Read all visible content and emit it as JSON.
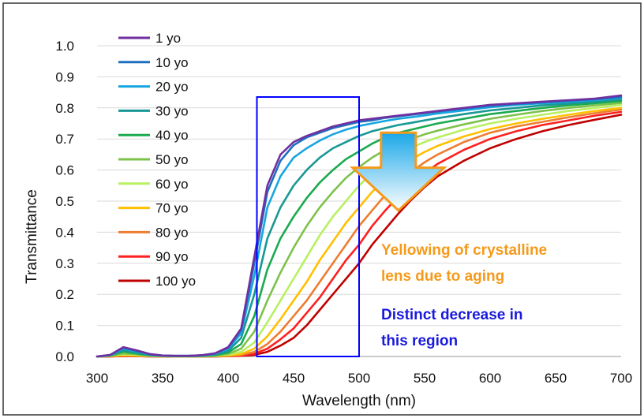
{
  "chart_data": {
    "type": "line",
    "title": "",
    "xlabel": "Wavelength (nm)",
    "ylabel": "Transmittance",
    "xlim": [
      300,
      700
    ],
    "ylim": [
      0,
      1.0
    ],
    "x_ticks": [
      "300",
      "350",
      "400",
      "450",
      "500",
      "550",
      "600",
      "650",
      "700"
    ],
    "y_ticks": [
      "0.0",
      "0.1",
      "0.2",
      "0.3",
      "0.4",
      "0.5",
      "0.6",
      "0.7",
      "0.8",
      "0.9",
      "1.0"
    ],
    "grid": "horizontal",
    "legend_position": "top-left",
    "x": [
      300,
      310,
      320,
      330,
      340,
      350,
      360,
      370,
      380,
      390,
      400,
      410,
      420,
      430,
      440,
      450,
      460,
      470,
      480,
      490,
      500,
      510,
      520,
      530,
      540,
      550,
      560,
      580,
      600,
      620,
      640,
      660,
      680,
      700
    ],
    "series": [
      {
        "name": "1 yo",
        "color": "#7030a0",
        "values": [
          0.0,
          0.005,
          0.03,
          0.02,
          0.008,
          0.003,
          0.002,
          0.002,
          0.004,
          0.01,
          0.03,
          0.09,
          0.32,
          0.55,
          0.65,
          0.69,
          0.71,
          0.725,
          0.74,
          0.75,
          0.76,
          0.765,
          0.77,
          0.775,
          0.78,
          0.785,
          0.79,
          0.8,
          0.81,
          0.815,
          0.82,
          0.825,
          0.83,
          0.84
        ]
      },
      {
        "name": "10 yo",
        "color": "#1f6fbf",
        "values": [
          0.0,
          0.005,
          0.028,
          0.018,
          0.007,
          0.003,
          0.002,
          0.002,
          0.004,
          0.01,
          0.028,
          0.085,
          0.3,
          0.53,
          0.63,
          0.68,
          0.705,
          0.72,
          0.735,
          0.745,
          0.755,
          0.76,
          0.768,
          0.773,
          0.778,
          0.783,
          0.788,
          0.798,
          0.807,
          0.813,
          0.818,
          0.823,
          0.828,
          0.835
        ]
      },
      {
        "name": "20 yo",
        "color": "#17a6e0",
        "values": [
          0.0,
          0.004,
          0.025,
          0.016,
          0.006,
          0.002,
          0.002,
          0.002,
          0.003,
          0.008,
          0.024,
          0.075,
          0.26,
          0.48,
          0.58,
          0.64,
          0.67,
          0.695,
          0.715,
          0.73,
          0.742,
          0.75,
          0.758,
          0.765,
          0.77,
          0.776,
          0.782,
          0.792,
          0.802,
          0.81,
          0.815,
          0.82,
          0.825,
          0.832
        ]
      },
      {
        "name": "30 yo",
        "color": "#189895",
        "values": [
          0.0,
          0.004,
          0.02,
          0.013,
          0.005,
          0.002,
          0.001,
          0.001,
          0.002,
          0.006,
          0.018,
          0.06,
          0.2,
          0.38,
          0.48,
          0.55,
          0.6,
          0.64,
          0.67,
          0.69,
          0.71,
          0.725,
          0.735,
          0.745,
          0.752,
          0.76,
          0.767,
          0.78,
          0.792,
          0.8,
          0.808,
          0.814,
          0.82,
          0.828
        ]
      },
      {
        "name": "40 yo",
        "color": "#1aaa4e",
        "values": [
          0.0,
          0.003,
          0.016,
          0.01,
          0.004,
          0.002,
          0.001,
          0.001,
          0.002,
          0.004,
          0.013,
          0.04,
          0.13,
          0.28,
          0.38,
          0.45,
          0.51,
          0.56,
          0.6,
          0.635,
          0.66,
          0.685,
          0.705,
          0.72,
          0.73,
          0.74,
          0.75,
          0.765,
          0.78,
          0.79,
          0.8,
          0.808,
          0.815,
          0.822
        ]
      },
      {
        "name": "50 yo",
        "color": "#7dc24b",
        "values": [
          0.0,
          0.002,
          0.01,
          0.007,
          0.003,
          0.001,
          0.001,
          0.001,
          0.001,
          0.003,
          0.008,
          0.025,
          0.08,
          0.18,
          0.27,
          0.35,
          0.42,
          0.48,
          0.53,
          0.575,
          0.61,
          0.64,
          0.665,
          0.685,
          0.7,
          0.715,
          0.727,
          0.747,
          0.765,
          0.778,
          0.79,
          0.8,
          0.808,
          0.816
        ]
      },
      {
        "name": "60 yo",
        "color": "#b8f060",
        "values": [
          0.0,
          0.002,
          0.007,
          0.005,
          0.002,
          0.001,
          0.0,
          0.0,
          0.001,
          0.002,
          0.005,
          0.015,
          0.045,
          0.11,
          0.18,
          0.25,
          0.32,
          0.39,
          0.45,
          0.5,
          0.55,
          0.59,
          0.625,
          0.65,
          0.672,
          0.69,
          0.705,
          0.73,
          0.75,
          0.765,
          0.778,
          0.79,
          0.8,
          0.81
        ]
      },
      {
        "name": "70 yo",
        "color": "#ffc000",
        "values": [
          0.0,
          0.001,
          0.004,
          0.003,
          0.001,
          0.0,
          0.0,
          0.0,
          0.0,
          0.001,
          0.003,
          0.008,
          0.025,
          0.065,
          0.12,
          0.18,
          0.24,
          0.31,
          0.37,
          0.43,
          0.48,
          0.53,
          0.57,
          0.605,
          0.635,
          0.658,
          0.678,
          0.708,
          0.732,
          0.75,
          0.765,
          0.778,
          0.79,
          0.8
        ]
      },
      {
        "name": "80 yo",
        "color": "#ed7d31",
        "values": [
          0.0,
          0.001,
          0.003,
          0.002,
          0.001,
          0.0,
          0.0,
          0.0,
          0.0,
          0.001,
          0.002,
          0.005,
          0.015,
          0.04,
          0.08,
          0.13,
          0.18,
          0.24,
          0.3,
          0.36,
          0.42,
          0.47,
          0.52,
          0.56,
          0.595,
          0.625,
          0.65,
          0.69,
          0.72,
          0.74,
          0.755,
          0.77,
          0.783,
          0.795
        ]
      },
      {
        "name": "90 yo",
        "color": "#ff2020",
        "values": [
          0.0,
          0.0,
          0.002,
          0.001,
          0.0,
          0.0,
          0.0,
          0.0,
          0.0,
          0.0,
          0.001,
          0.003,
          0.009,
          0.025,
          0.055,
          0.09,
          0.14,
          0.19,
          0.25,
          0.31,
          0.36,
          0.42,
          0.47,
          0.515,
          0.555,
          0.59,
          0.62,
          0.665,
          0.7,
          0.725,
          0.745,
          0.76,
          0.775,
          0.787
        ]
      },
      {
        "name": "100 yo",
        "color": "#c00000",
        "values": [
          0.0,
          0.0,
          0.001,
          0.001,
          0.0,
          0.0,
          0.0,
          0.0,
          0.0,
          0.0,
          0.001,
          0.002,
          0.005,
          0.015,
          0.035,
          0.06,
          0.1,
          0.15,
          0.2,
          0.25,
          0.3,
          0.36,
          0.41,
          0.46,
          0.505,
          0.545,
          0.58,
          0.63,
          0.67,
          0.7,
          0.725,
          0.745,
          0.762,
          0.778
        ]
      }
    ],
    "highlight_region": {
      "x": [
        422,
        500
      ],
      "y": [
        0,
        0.835
      ],
      "color": "#0000ff"
    },
    "arrow": {
      "from": [
        530,
        0.72
      ],
      "to": [
        530,
        0.47
      ],
      "color": "#f59a1a"
    },
    "annotations": [
      {
        "id": "yellowing",
        "lines": [
          "Yellowing of crystalline",
          "lens due to aging"
        ],
        "color": "#f59a1a"
      },
      {
        "id": "decrease",
        "lines": [
          "Distinct decrease in",
          "this region"
        ],
        "color": "#1a1adb"
      }
    ]
  }
}
